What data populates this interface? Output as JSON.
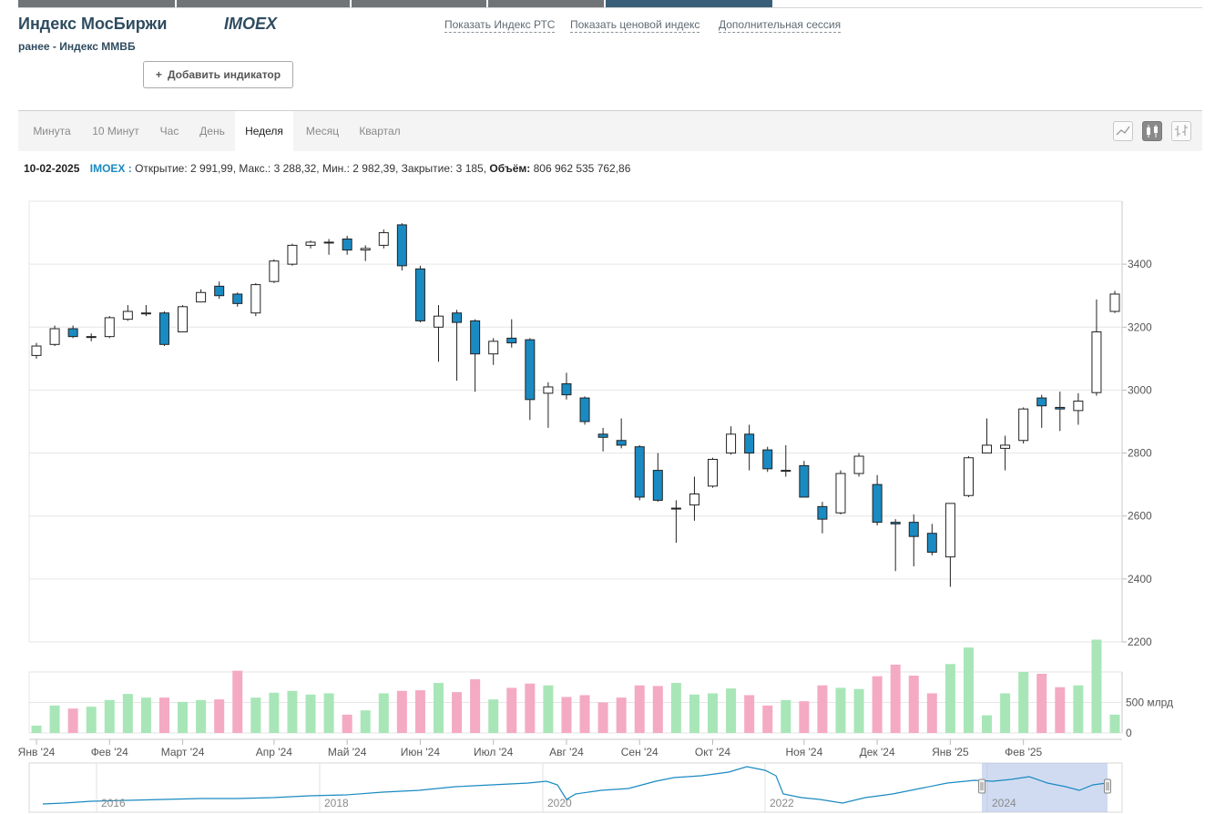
{
  "header": {
    "title": "Индекс МосБиржи",
    "ticker": "IMOEX",
    "subtitle": "ранее - Индекс ММВБ",
    "links": [
      "Показать Индекс РТС",
      "Показать ценовой индекс",
      "Дополнительная сессия"
    ],
    "add_indicator": "Добавить индикатор"
  },
  "tabs": [
    "Минута",
    "10 Минут",
    "Час",
    "День",
    "Неделя",
    "Месяц",
    "Квартал"
  ],
  "active_tab": "Неделя",
  "chart_type_icons": [
    "line-chart-icon",
    "candlestick-icon",
    "ohlc-bars-icon"
  ],
  "info": {
    "date": "10-02-2025",
    "ticker": "IMOEX :",
    "text": "Открытие: 2 991,99, Макс.: 3 288,32, Мин.: 2 982,39, Закрытие: 3 185,",
    "volume_label": "Объём:",
    "volume_value": "806 962 535 762,86"
  },
  "chart_data": {
    "type": "candlestick",
    "y_ticks": [
      "3400",
      "3200",
      "3000",
      "2800",
      "2600",
      "2400",
      "2200"
    ],
    "ylim": [
      2200,
      3600
    ],
    "x_labels": [
      "Янв '24",
      "Фев '24",
      "Март '24",
      "Апр '24",
      "Май '24",
      "Июн '24",
      "Июл '24",
      "Авг '24",
      "Сен '24",
      "Окт '24",
      "Ноя '24",
      "Дек '24",
      "Янв '25",
      "Фев '25"
    ],
    "volume_ticks": [
      "500 млрд",
      "0"
    ],
    "volume_max": 1000,
    "candles": [
      {
        "o": 3110,
        "h": 3150,
        "l": 3100,
        "c": 3140,
        "v": 120
      },
      {
        "o": 3145,
        "h": 3205,
        "l": 3140,
        "c": 3195,
        "v": 450
      },
      {
        "o": 3195,
        "h": 3205,
        "l": 3165,
        "c": 3170,
        "v": 400
      },
      {
        "o": 3170,
        "h": 3180,
        "l": 3155,
        "c": 3170,
        "v": 430
      },
      {
        "o": 3170,
        "h": 3235,
        "l": 3165,
        "c": 3230,
        "v": 540
      },
      {
        "o": 3225,
        "h": 3270,
        "l": 3220,
        "c": 3250,
        "v": 640
      },
      {
        "o": 3245,
        "h": 3270,
        "l": 3235,
        "c": 3245,
        "v": 580
      },
      {
        "o": 3245,
        "h": 3250,
        "l": 3140,
        "c": 3145,
        "v": 580
      },
      {
        "o": 3185,
        "h": 3270,
        "l": 3185,
        "c": 3265,
        "v": 510
      },
      {
        "o": 3280,
        "h": 3320,
        "l": 3280,
        "c": 3310,
        "v": 540
      },
      {
        "o": 3330,
        "h": 3345,
        "l": 3290,
        "c": 3300,
        "v": 550
      },
      {
        "o": 3305,
        "h": 3310,
        "l": 3265,
        "c": 3275,
        "v": 1020
      },
      {
        "o": 3245,
        "h": 3340,
        "l": 3235,
        "c": 3335,
        "v": 580
      },
      {
        "o": 3345,
        "h": 3415,
        "l": 3340,
        "c": 3410,
        "v": 660
      },
      {
        "o": 3400,
        "h": 3465,
        "l": 3395,
        "c": 3460,
        "v": 690
      },
      {
        "o": 3460,
        "h": 3475,
        "l": 3450,
        "c": 3470,
        "v": 630
      },
      {
        "o": 3470,
        "h": 3480,
        "l": 3430,
        "c": 3470,
        "v": 650
      },
      {
        "o": 3480,
        "h": 3490,
        "l": 3430,
        "c": 3445,
        "v": 300
      },
      {
        "o": 3445,
        "h": 3460,
        "l": 3410,
        "c": 3450,
        "v": 370
      },
      {
        "o": 3460,
        "h": 3510,
        "l": 3450,
        "c": 3500,
        "v": 650
      },
      {
        "o": 3525,
        "h": 3530,
        "l": 3380,
        "c": 3395,
        "v": 690
      },
      {
        "o": 3385,
        "h": 3395,
        "l": 3215,
        "c": 3220,
        "v": 700
      },
      {
        "o": 3200,
        "h": 3270,
        "l": 3090,
        "c": 3235,
        "v": 820
      },
      {
        "o": 3245,
        "h": 3255,
        "l": 3030,
        "c": 3215,
        "v": 670
      },
      {
        "o": 3220,
        "h": 3225,
        "l": 2995,
        "c": 3115,
        "v": 880
      },
      {
        "o": 3115,
        "h": 3165,
        "l": 3080,
        "c": 3155,
        "v": 550
      },
      {
        "o": 3165,
        "h": 3225,
        "l": 3135,
        "c": 3150,
        "v": 740
      },
      {
        "o": 3160,
        "h": 3165,
        "l": 2905,
        "c": 2970,
        "v": 810
      },
      {
        "o": 2990,
        "h": 3025,
        "l": 2880,
        "c": 3010,
        "v": 780
      },
      {
        "o": 3020,
        "h": 3055,
        "l": 2970,
        "c": 2985,
        "v": 590
      },
      {
        "o": 2975,
        "h": 2980,
        "l": 2890,
        "c": 2900,
        "v": 620
      },
      {
        "o": 2860,
        "h": 2880,
        "l": 2805,
        "c": 2850,
        "v": 500
      },
      {
        "o": 2840,
        "h": 2910,
        "l": 2815,
        "c": 2825,
        "v": 580
      },
      {
        "o": 2820,
        "h": 2825,
        "l": 2650,
        "c": 2660,
        "v": 780
      },
      {
        "o": 2745,
        "h": 2800,
        "l": 2645,
        "c": 2650,
        "v": 770
      },
      {
        "o": 2625,
        "h": 2650,
        "l": 2515,
        "c": 2625,
        "v": 820
      },
      {
        "o": 2635,
        "h": 2725,
        "l": 2585,
        "c": 2670,
        "v": 630
      },
      {
        "o": 2695,
        "h": 2785,
        "l": 2690,
        "c": 2780,
        "v": 650
      },
      {
        "o": 2800,
        "h": 2885,
        "l": 2795,
        "c": 2860,
        "v": 730
      },
      {
        "o": 2860,
        "h": 2890,
        "l": 2745,
        "c": 2800,
        "v": 620
      },
      {
        "o": 2810,
        "h": 2820,
        "l": 2740,
        "c": 2750,
        "v": 450
      },
      {
        "o": 2745,
        "h": 2825,
        "l": 2725,
        "c": 2745,
        "v": 540
      },
      {
        "o": 2760,
        "h": 2775,
        "l": 2660,
        "c": 2660,
        "v": 520
      },
      {
        "o": 2630,
        "h": 2645,
        "l": 2545,
        "c": 2590,
        "v": 780
      },
      {
        "o": 2610,
        "h": 2745,
        "l": 2605,
        "c": 2735,
        "v": 740
      },
      {
        "o": 2735,
        "h": 2800,
        "l": 2725,
        "c": 2790,
        "v": 720
      },
      {
        "o": 2700,
        "h": 2730,
        "l": 2570,
        "c": 2580,
        "v": 930
      },
      {
        "o": 2580,
        "h": 2590,
        "l": 2425,
        "c": 2575,
        "v": 1120
      },
      {
        "o": 2580,
        "h": 2605,
        "l": 2440,
        "c": 2535,
        "v": 940
      },
      {
        "o": 2545,
        "h": 2575,
        "l": 2475,
        "c": 2485,
        "v": 650
      },
      {
        "o": 2470,
        "h": 2640,
        "l": 2375,
        "c": 2640,
        "v": 1130
      },
      {
        "o": 2665,
        "h": 2790,
        "l": 2660,
        "c": 2785,
        "v": 1400
      },
      {
        "o": 2800,
        "h": 2910,
        "l": 2800,
        "c": 2825,
        "v": 290
      },
      {
        "o": 2815,
        "h": 2855,
        "l": 2745,
        "c": 2825,
        "v": 650
      },
      {
        "o": 2840,
        "h": 2945,
        "l": 2830,
        "c": 2940,
        "v": 1000
      },
      {
        "o": 2975,
        "h": 2985,
        "l": 2880,
        "c": 2950,
        "v": 970
      },
      {
        "o": 2945,
        "h": 2995,
        "l": 2870,
        "c": 2940,
        "v": 750
      },
      {
        "o": 2935,
        "h": 2990,
        "l": 2890,
        "c": 2965,
        "v": 780
      },
      {
        "o": 2992,
        "h": 3288,
        "l": 2982,
        "c": 3185,
        "v": 1530
      },
      {
        "o": 3250,
        "h": 3315,
        "l": 3245,
        "c": 3305,
        "v": 300
      }
    ],
    "navigator": {
      "labels": [
        "2016",
        "2018",
        "2020",
        "2022",
        "2024"
      ]
    }
  }
}
